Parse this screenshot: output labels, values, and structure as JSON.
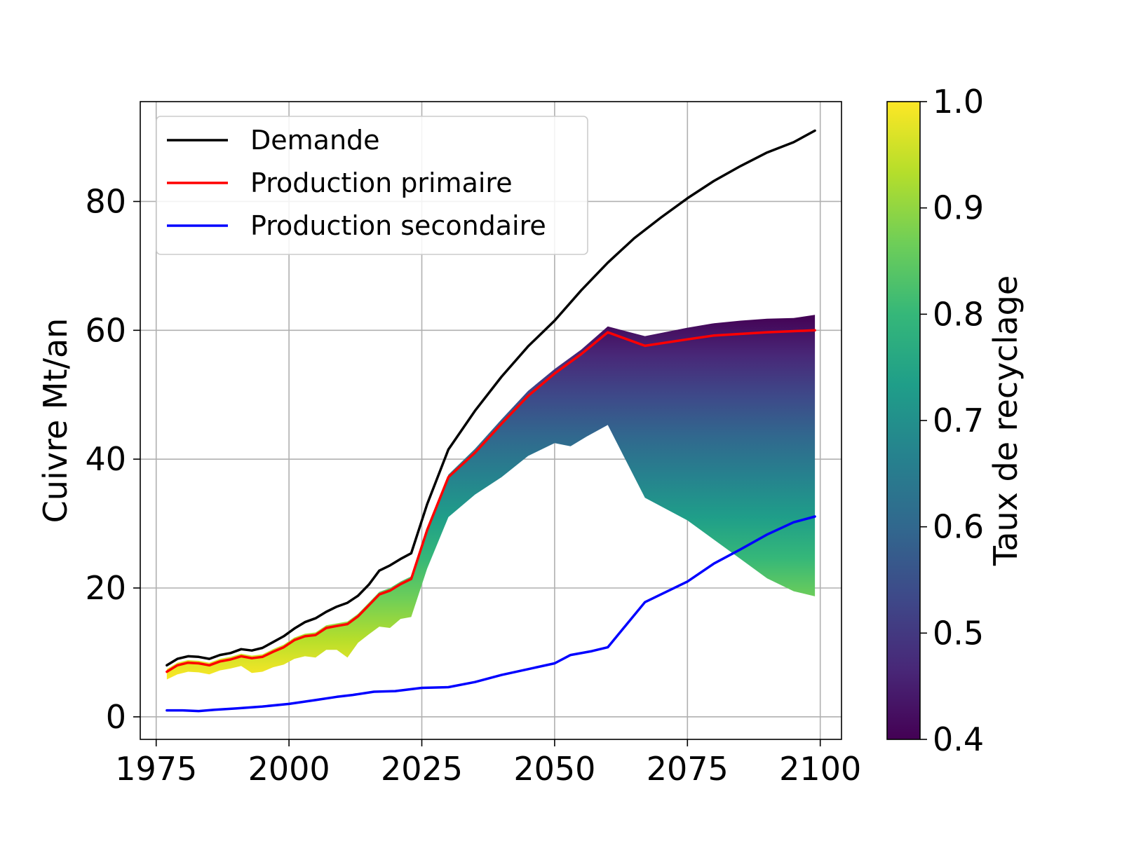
{
  "chart_data": {
    "type": "line",
    "ylabel": "Cuivre Mt/an",
    "xlim": [
      1972,
      2104
    ],
    "ylim": [
      -3.5,
      95.5
    ],
    "grid": true,
    "xticks": [
      1975,
      2000,
      2025,
      2050,
      2075,
      2100
    ],
    "yticks": [
      0,
      20,
      40,
      60,
      80
    ],
    "legend": {
      "placement": "top-left",
      "entries": [
        {
          "label": "Demande",
          "color": "#000000"
        },
        {
          "label": "Production primaire",
          "color": "#ff0000"
        },
        {
          "label": "Production secondaire",
          "color": "#0000ff"
        }
      ]
    },
    "colorbar": {
      "label": "Taux de recyclage",
      "min": 0.4,
      "max": 1.0,
      "ticks": [
        "0.4",
        "0.5",
        "0.6",
        "0.7",
        "0.8",
        "0.9",
        "1.0"
      ],
      "colormap": "viridis",
      "stops": [
        "#440154",
        "#482878",
        "#3e4989",
        "#31688e",
        "#26828e",
        "#1f9e89",
        "#35b779",
        "#6ece58",
        "#b5de2b",
        "#fde725"
      ]
    },
    "series": [
      {
        "name": "Demande",
        "color": "#000000",
        "points": [
          [
            1977,
            8.0
          ],
          [
            1979,
            9.0
          ],
          [
            1981,
            9.4
          ],
          [
            1983,
            9.3
          ],
          [
            1985,
            9.0
          ],
          [
            1987,
            9.6
          ],
          [
            1989,
            9.9
          ],
          [
            1991,
            10.5
          ],
          [
            1993,
            10.3
          ],
          [
            1995,
            10.7
          ],
          [
            1997,
            11.6
          ],
          [
            1999,
            12.5
          ],
          [
            2001,
            13.7
          ],
          [
            2003,
            14.7
          ],
          [
            2005,
            15.3
          ],
          [
            2007,
            16.3
          ],
          [
            2009,
            17.1
          ],
          [
            2011,
            17.7
          ],
          [
            2013,
            18.8
          ],
          [
            2015,
            20.5
          ],
          [
            2017,
            22.7
          ],
          [
            2019,
            23.5
          ],
          [
            2021,
            24.5
          ],
          [
            2023,
            25.4
          ],
          [
            2026,
            33.0
          ],
          [
            2030,
            41.5
          ],
          [
            2035,
            47.5
          ],
          [
            2040,
            52.8
          ],
          [
            2045,
            57.5
          ],
          [
            2050,
            61.5
          ],
          [
            2055,
            66.2
          ],
          [
            2060,
            70.5
          ],
          [
            2065,
            74.3
          ],
          [
            2070,
            77.5
          ],
          [
            2075,
            80.5
          ],
          [
            2080,
            83.2
          ],
          [
            2085,
            85.5
          ],
          [
            2090,
            87.6
          ],
          [
            2095,
            89.2
          ],
          [
            2099,
            91.0
          ]
        ]
      },
      {
        "name": "Production primaire",
        "color": "#ff0000",
        "points": [
          [
            1977,
            7.0
          ],
          [
            1979,
            8.0
          ],
          [
            1981,
            8.4
          ],
          [
            1983,
            8.3
          ],
          [
            1985,
            8.0
          ],
          [
            1987,
            8.6
          ],
          [
            1989,
            8.9
          ],
          [
            1991,
            9.4
          ],
          [
            1993,
            9.1
          ],
          [
            1995,
            9.3
          ],
          [
            1997,
            10.1
          ],
          [
            1999,
            10.8
          ],
          [
            2001,
            11.9
          ],
          [
            2003,
            12.5
          ],
          [
            2005,
            12.7
          ],
          [
            2007,
            13.8
          ],
          [
            2009,
            14.1
          ],
          [
            2011,
            14.4
          ],
          [
            2013,
            15.6
          ],
          [
            2015,
            17.3
          ],
          [
            2017,
            19.0
          ],
          [
            2019,
            19.6
          ],
          [
            2021,
            20.6
          ],
          [
            2023,
            21.4
          ],
          [
            2026,
            29.0
          ],
          [
            2030,
            37.2
          ],
          [
            2035,
            41.0
          ],
          [
            2040,
            45.5
          ],
          [
            2045,
            49.8
          ],
          [
            2050,
            53.3
          ],
          [
            2055,
            56.3
          ],
          [
            2060,
            59.7
          ],
          [
            2067,
            57.6
          ],
          [
            2075,
            58.6
          ],
          [
            2080,
            59.2
          ],
          [
            2090,
            59.7
          ],
          [
            2099,
            60.0
          ]
        ]
      },
      {
        "name": "Production secondaire",
        "color": "#0000ff",
        "points": [
          [
            1977,
            1.0
          ],
          [
            1980,
            1.0
          ],
          [
            1983,
            0.9
          ],
          [
            1986,
            1.1
          ],
          [
            1990,
            1.3
          ],
          [
            1995,
            1.6
          ],
          [
            2000,
            2.0
          ],
          [
            2005,
            2.6
          ],
          [
            2009,
            3.1
          ],
          [
            2012,
            3.4
          ],
          [
            2016,
            3.9
          ],
          [
            2020,
            4.0
          ],
          [
            2025,
            4.5
          ],
          [
            2030,
            4.6
          ],
          [
            2035,
            5.4
          ],
          [
            2040,
            6.5
          ],
          [
            2045,
            7.4
          ],
          [
            2050,
            8.3
          ],
          [
            2053,
            9.6
          ],
          [
            2057,
            10.2
          ],
          [
            2060,
            10.8
          ],
          [
            2067,
            17.8
          ],
          [
            2075,
            21.0
          ],
          [
            2080,
            23.8
          ],
          [
            2085,
            26.0
          ],
          [
            2090,
            28.3
          ],
          [
            2095,
            30.2
          ],
          [
            2099,
            31.1
          ]
        ]
      }
    ],
    "band": {
      "name": "Taux de recyclage",
      "upper": [
        [
          1977,
          7.4
        ],
        [
          1979,
          8.4
        ],
        [
          1981,
          8.8
        ],
        [
          1983,
          8.7
        ],
        [
          1985,
          8.4
        ],
        [
          1987,
          9.0
        ],
        [
          1989,
          9.3
        ],
        [
          1991,
          9.8
        ],
        [
          1993,
          9.5
        ],
        [
          1995,
          9.7
        ],
        [
          1997,
          10.5
        ],
        [
          1999,
          11.2
        ],
        [
          2001,
          12.3
        ],
        [
          2003,
          12.9
        ],
        [
          2005,
          13.1
        ],
        [
          2007,
          14.2
        ],
        [
          2009,
          14.5
        ],
        [
          2011,
          14.8
        ],
        [
          2013,
          16.0
        ],
        [
          2015,
          17.7
        ],
        [
          2017,
          19.4
        ],
        [
          2019,
          20.0
        ],
        [
          2021,
          21.0
        ],
        [
          2023,
          21.8
        ],
        [
          2026,
          29.4
        ],
        [
          2030,
          37.6
        ],
        [
          2035,
          41.6
        ],
        [
          2040,
          46.2
        ],
        [
          2045,
          50.6
        ],
        [
          2050,
          54.0
        ],
        [
          2055,
          57.0
        ],
        [
          2060,
          60.6
        ],
        [
          2067,
          59.1
        ],
        [
          2075,
          60.4
        ],
        [
          2080,
          61.1
        ],
        [
          2085,
          61.5
        ],
        [
          2090,
          61.8
        ],
        [
          2095,
          61.9
        ],
        [
          2099,
          62.4
        ]
      ],
      "lower": [
        [
          1977,
          5.8
        ],
        [
          1979,
          6.6
        ],
        [
          1981,
          7.0
        ],
        [
          1983,
          6.9
        ],
        [
          1985,
          6.6
        ],
        [
          1987,
          7.2
        ],
        [
          1989,
          7.5
        ],
        [
          1991,
          7.9
        ],
        [
          1993,
          6.8
        ],
        [
          1995,
          7.0
        ],
        [
          1997,
          7.7
        ],
        [
          1999,
          8.1
        ],
        [
          2001,
          9.0
        ],
        [
          2003,
          9.4
        ],
        [
          2005,
          9.2
        ],
        [
          2007,
          10.4
        ],
        [
          2009,
          10.4
        ],
        [
          2011,
          9.2
        ],
        [
          2013,
          11.5
        ],
        [
          2015,
          12.8
        ],
        [
          2017,
          14.0
        ],
        [
          2019,
          13.8
        ],
        [
          2021,
          15.2
        ],
        [
          2023,
          15.5
        ],
        [
          2026,
          23.0
        ],
        [
          2030,
          31.0
        ],
        [
          2035,
          34.5
        ],
        [
          2040,
          37.2
        ],
        [
          2045,
          40.5
        ],
        [
          2050,
          42.5
        ],
        [
          2053,
          42.0
        ],
        [
          2056,
          43.5
        ],
        [
          2060,
          45.3
        ],
        [
          2067,
          34.0
        ],
        [
          2075,
          30.5
        ],
        [
          2080,
          27.5
        ],
        [
          2085,
          24.5
        ],
        [
          2090,
          21.5
        ],
        [
          2095,
          19.5
        ],
        [
          2099,
          18.7
        ]
      ]
    }
  }
}
